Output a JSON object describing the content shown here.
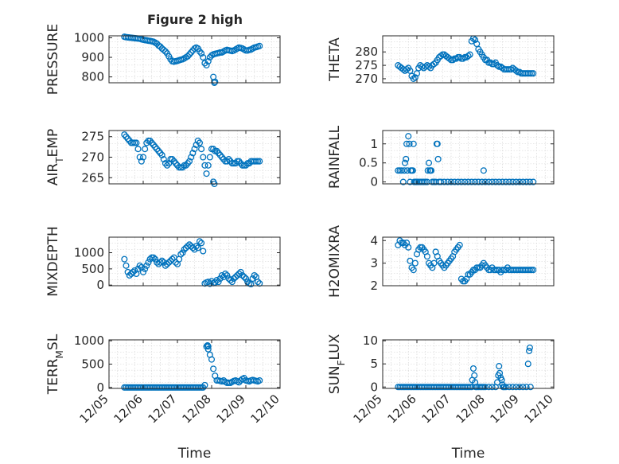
{
  "figure": {
    "title": "Figure 2 high"
  },
  "chart_data": [
    {
      "type": "scatter",
      "ylabel": "PRESSURE",
      "xlabel": "",
      "xlim": [
        0,
        5
      ],
      "ylim": [
        770,
        1010
      ],
      "yticks": [
        800,
        900,
        1000
      ],
      "xticks": [],
      "grid": true,
      "x": [
        0.45,
        0.5,
        0.55,
        0.6,
        0.65,
        0.7,
        0.75,
        0.8,
        0.85,
        0.9,
        0.95,
        1.0,
        1.05,
        1.1,
        1.15,
        1.2,
        1.25,
        1.3,
        1.35,
        1.4,
        1.45,
        1.5,
        1.55,
        1.6,
        1.65,
        1.7,
        1.75,
        1.8,
        1.85,
        1.9,
        1.95,
        2.0,
        2.05,
        2.1,
        2.15,
        2.2,
        2.25,
        2.3,
        2.35,
        2.4,
        2.45,
        2.5,
        2.55,
        2.6,
        2.65,
        2.7,
        2.75,
        2.8,
        2.85,
        2.9,
        2.95,
        3.0,
        3.05,
        3.1,
        3.15,
        3.2,
        3.25,
        3.3,
        3.35,
        3.4,
        3.45,
        3.5,
        3.55,
        3.6,
        3.65,
        3.7,
        3.75,
        3.8,
        3.85,
        3.9,
        3.95,
        4.0,
        4.05,
        4.1,
        4.15,
        4.2,
        4.25,
        4.3,
        4.35,
        4.4,
        3.05,
        3.08,
        3.1
      ],
      "values": [
        1005,
        1003,
        1002,
        1001,
        1000,
        999,
        998,
        997,
        996,
        995,
        992,
        990,
        988,
        987,
        985,
        984,
        982,
        980,
        975,
        970,
        960,
        955,
        945,
        938,
        930,
        920,
        905,
        890,
        880,
        878,
        880,
        882,
        885,
        888,
        890,
        895,
        900,
        905,
        915,
        925,
        935,
        945,
        950,
        945,
        930,
        920,
        900,
        870,
        860,
        880,
        900,
        910,
        915,
        918,
        920,
        922,
        925,
        925,
        930,
        935,
        938,
        936,
        934,
        932,
        935,
        940,
        945,
        950,
        948,
        945,
        940,
        935,
        935,
        938,
        940,
        945,
        950,
        952,
        955,
        958,
        800,
        770,
        775
      ]
    },
    {
      "type": "scatter",
      "ylabel": "THETA",
      "xlabel": "",
      "xlim": [
        0,
        5
      ],
      "ylim": [
        268.5,
        286
      ],
      "yticks": [
        270,
        275,
        280
      ],
      "xticks": [],
      "grid": true,
      "x": [
        0.45,
        0.5,
        0.55,
        0.6,
        0.65,
        0.7,
        0.75,
        0.8,
        0.85,
        0.9,
        0.95,
        1.0,
        1.05,
        1.1,
        1.15,
        1.2,
        1.25,
        1.3,
        1.35,
        1.4,
        1.45,
        1.5,
        1.55,
        1.6,
        1.65,
        1.7,
        1.75,
        1.8,
        1.85,
        1.9,
        1.95,
        2.0,
        2.05,
        2.1,
        2.15,
        2.2,
        2.25,
        2.3,
        2.35,
        2.4,
        2.45,
        2.5,
        2.55,
        2.6,
        2.65,
        2.7,
        2.75,
        2.8,
        2.85,
        2.9,
        2.95,
        3.0,
        3.05,
        3.1,
        3.15,
        3.2,
        3.25,
        3.3,
        3.35,
        3.4,
        3.45,
        3.5,
        3.55,
        3.6,
        3.65,
        3.7,
        3.75,
        3.8,
        3.85,
        3.9,
        3.95,
        4.0,
        4.05,
        4.1,
        4.15,
        4.2,
        4.25,
        4.3,
        4.35,
        4.4
      ],
      "values": [
        275,
        274.5,
        274,
        273.5,
        273,
        273.5,
        274,
        273,
        271,
        270,
        270.5,
        272,
        274,
        275,
        274.5,
        274,
        274.5,
        275,
        274.5,
        274,
        275,
        275.5,
        276,
        277,
        278,
        278.5,
        279,
        279,
        278.5,
        278,
        277.5,
        277,
        277,
        277.5,
        277.5,
        278,
        278,
        277.5,
        277.5,
        278,
        278,
        278.5,
        279,
        284,
        285,
        284.5,
        283,
        281,
        280,
        279,
        278,
        277,
        277,
        276,
        276,
        275.5,
        275.5,
        276,
        275,
        274.5,
        274.5,
        274,
        273.5,
        273.5,
        273.5,
        273.5,
        273.5,
        274,
        273.5,
        273,
        272.5,
        272.5,
        272,
        272,
        272,
        272,
        272,
        272,
        272,
        272
      ]
    },
    {
      "type": "scatter",
      "ylabel": "AIR_TEMP",
      "xlabel": "",
      "xlim": [
        0,
        5
      ],
      "ylim": [
        263.5,
        276.5
      ],
      "yticks": [
        265,
        270,
        275
      ],
      "xticks": [],
      "grid": true,
      "x": [
        0.45,
        0.5,
        0.55,
        0.6,
        0.65,
        0.7,
        0.75,
        0.8,
        0.85,
        0.9,
        0.95,
        1.0,
        1.05,
        1.1,
        1.15,
        1.2,
        1.25,
        1.3,
        1.35,
        1.4,
        1.45,
        1.5,
        1.55,
        1.6,
        1.65,
        1.7,
        1.75,
        1.8,
        1.85,
        1.9,
        1.95,
        2.0,
        2.05,
        2.1,
        2.15,
        2.2,
        2.25,
        2.3,
        2.35,
        2.4,
        2.45,
        2.5,
        2.55,
        2.6,
        2.65,
        2.7,
        2.75,
        2.8,
        2.85,
        2.9,
        2.95,
        3.0,
        3.05,
        3.1,
        3.15,
        3.2,
        3.25,
        3.3,
        3.35,
        3.4,
        3.45,
        3.5,
        3.55,
        3.6,
        3.65,
        3.7,
        3.75,
        3.8,
        3.85,
        3.9,
        3.95,
        4.0,
        4.05,
        4.1,
        4.15,
        4.2,
        4.25,
        4.3,
        4.35,
        4.4,
        3.05,
        3.08
      ],
      "values": [
        275.5,
        275,
        274.5,
        274,
        273.5,
        273.5,
        273.5,
        273.5,
        272,
        270,
        269,
        270,
        272,
        273.5,
        274,
        274,
        273.5,
        273,
        272.5,
        272,
        271.5,
        271,
        270.5,
        269.5,
        268.5,
        268,
        268.5,
        269.5,
        269.5,
        269,
        268.5,
        268,
        267.5,
        267.5,
        267.5,
        268,
        268,
        268.5,
        269,
        270,
        271,
        272,
        273,
        274,
        273.5,
        272,
        270,
        268,
        266,
        268,
        270,
        272,
        272,
        271.5,
        271.5,
        271,
        270.5,
        270,
        269.5,
        269,
        269,
        269.5,
        269,
        268.5,
        268.5,
        268.5,
        269,
        269,
        268.5,
        268,
        268,
        268,
        268.5,
        268.5,
        269,
        269,
        269,
        269,
        269,
        269,
        264,
        263.5
      ]
    },
    {
      "type": "scatter",
      "ylabel": "RAINFALL",
      "xlabel": "",
      "xlim": [
        0,
        5
      ],
      "ylim": [
        -0.05,
        1.35
      ],
      "yticks": [
        0,
        0.5,
        1
      ],
      "xticks": [],
      "grid": true,
      "x": [
        0.45,
        0.5,
        0.55,
        0.6,
        0.63,
        0.65,
        0.68,
        0.7,
        0.72,
        0.75,
        0.78,
        0.8,
        0.82,
        0.85,
        0.88,
        0.9,
        0.92,
        0.95,
        0.98,
        1.0,
        1.05,
        1.1,
        1.15,
        1.2,
        1.25,
        1.3,
        1.32,
        1.35,
        1.38,
        1.4,
        1.42,
        1.45,
        1.5,
        1.55,
        1.58,
        1.6,
        1.62,
        1.65,
        1.7,
        1.8,
        1.9,
        2.0,
        2.1,
        2.2,
        2.3,
        2.4,
        2.5,
        2.6,
        2.7,
        2.8,
        2.9,
        2.95,
        3.0,
        3.1,
        3.2,
        3.3,
        3.4,
        3.5,
        3.6,
        3.7,
        3.8,
        3.9,
        4.0,
        4.1,
        4.2,
        4.3,
        4.4
      ],
      "values": [
        0.3,
        0.3,
        0.3,
        0,
        0.3,
        0.5,
        0.6,
        1.0,
        0.3,
        1.2,
        1.0,
        0,
        0.3,
        0.3,
        0.3,
        1.0,
        0,
        0,
        0,
        0,
        0,
        0,
        0,
        0,
        0,
        0,
        0.3,
        0.5,
        0.3,
        0.3,
        0.3,
        0,
        0,
        0,
        1.0,
        1.0,
        0.6,
        0,
        0,
        0,
        0,
        0,
        0,
        0,
        0,
        0,
        0,
        0,
        0,
        0,
        0,
        0.3,
        0,
        0,
        0,
        0,
        0,
        0,
        0,
        0,
        0,
        0,
        0,
        0,
        0,
        0,
        0
      ]
    },
    {
      "type": "scatter",
      "ylabel": "MIXDEPTH",
      "xlabel": "",
      "xlim": [
        0,
        5
      ],
      "ylim": [
        -20,
        1480
      ],
      "yticks": [
        0,
        500,
        1000
      ],
      "xticks": [],
      "grid": true,
      "x": [
        0.45,
        0.5,
        0.55,
        0.6,
        0.65,
        0.7,
        0.75,
        0.8,
        0.85,
        0.9,
        0.95,
        1.0,
        1.05,
        1.1,
        1.15,
        1.2,
        1.25,
        1.3,
        1.35,
        1.4,
        1.45,
        1.5,
        1.55,
        1.6,
        1.65,
        1.7,
        1.75,
        1.8,
        1.85,
        1.9,
        1.95,
        2.0,
        2.05,
        2.1,
        2.15,
        2.2,
        2.25,
        2.3,
        2.35,
        2.4,
        2.45,
        2.5,
        2.55,
        2.6,
        2.65,
        2.7,
        2.75,
        2.8,
        2.85,
        2.9,
        2.95,
        3.0,
        3.05,
        3.1,
        3.15,
        3.2,
        3.25,
        3.3,
        3.35,
        3.4,
        3.45,
        3.5,
        3.55,
        3.6,
        3.65,
        3.7,
        3.75,
        3.8,
        3.85,
        3.9,
        3.95,
        4.0,
        4.05,
        4.1,
        4.15,
        4.2,
        4.25,
        4.3,
        4.35,
        4.4
      ],
      "values": [
        800,
        600,
        400,
        300,
        350,
        400,
        450,
        350,
        500,
        600,
        550,
        400,
        500,
        600,
        700,
        800,
        850,
        850,
        800,
        700,
        650,
        700,
        750,
        700,
        600,
        650,
        700,
        750,
        800,
        850,
        700,
        650,
        800,
        950,
        1000,
        1100,
        1150,
        1200,
        1250,
        1200,
        1150,
        1100,
        1200,
        1150,
        1350,
        1300,
        1050,
        50,
        80,
        100,
        40,
        120,
        60,
        80,
        150,
        100,
        200,
        300,
        250,
        350,
        300,
        200,
        150,
        100,
        200,
        250,
        300,
        350,
        400,
        300,
        250,
        200,
        100,
        50,
        30,
        200,
        300,
        250,
        100,
        50
      ]
    },
    {
      "type": "scatter",
      "ylabel": "H2OMIXRA",
      "xlabel": "",
      "xlim": [
        0,
        5
      ],
      "ylim": [
        2,
        4.15
      ],
      "yticks": [
        2,
        3,
        4
      ],
      "xticks": [],
      "grid": true,
      "x": [
        0.45,
        0.5,
        0.55,
        0.6,
        0.65,
        0.7,
        0.75,
        0.8,
        0.85,
        0.9,
        0.95,
        1.0,
        1.05,
        1.1,
        1.15,
        1.2,
        1.25,
        1.3,
        1.35,
        1.4,
        1.45,
        1.5,
        1.55,
        1.6,
        1.65,
        1.7,
        1.75,
        1.8,
        1.85,
        1.9,
        1.95,
        2.0,
        2.05,
        2.1,
        2.15,
        2.2,
        2.25,
        2.3,
        2.35,
        2.4,
        2.45,
        2.5,
        2.55,
        2.6,
        2.65,
        2.7,
        2.75,
        2.8,
        2.85,
        2.9,
        2.95,
        3.0,
        3.05,
        3.1,
        3.15,
        3.2,
        3.25,
        3.3,
        3.35,
        3.4,
        3.45,
        3.5,
        3.55,
        3.6,
        3.65,
        3.7,
        3.75,
        3.8,
        3.85,
        3.9,
        3.95,
        4.0,
        4.05,
        4.1,
        4.15,
        4.2,
        4.25,
        4.3,
        4.35,
        4.4
      ],
      "values": [
        3.8,
        4.0,
        3.9,
        3.9,
        3.8,
        3.9,
        3.7,
        3.1,
        2.8,
        2.7,
        3.0,
        3.4,
        3.6,
        3.7,
        3.7,
        3.6,
        3.5,
        3.3,
        3.0,
        2.9,
        2.8,
        3.0,
        3.5,
        3.3,
        3.1,
        3.0,
        2.9,
        2.8,
        2.9,
        3.0,
        3.1,
        3.2,
        3.3,
        3.5,
        3.6,
        3.7,
        3.8,
        2.3,
        2.2,
        2.2,
        2.3,
        2.5,
        2.5,
        2.6,
        2.7,
        2.7,
        2.8,
        2.8,
        2.8,
        2.9,
        3.0,
        2.9,
        2.8,
        2.7,
        2.7,
        2.8,
        2.7,
        2.7,
        2.7,
        2.7,
        2.6,
        2.7,
        2.7,
        2.7,
        2.8,
        2.7,
        2.7,
        2.7,
        2.7,
        2.7,
        2.7,
        2.7,
        2.7,
        2.7,
        2.7,
        2.7,
        2.7,
        2.7,
        2.7,
        2.7
      ]
    },
    {
      "type": "scatter",
      "ylabel": "TERR_MSL",
      "xlabel": "Time",
      "xlim": [
        0,
        5
      ],
      "ylim": [
        -20,
        1020
      ],
      "yticks": [
        0,
        500,
        1000
      ],
      "xticks": [
        "12/05",
        "12/06",
        "12/07",
        "12/08",
        "12/09",
        "12/10"
      ],
      "grid": true,
      "x": [
        0.45,
        0.5,
        0.55,
        0.6,
        0.65,
        0.7,
        0.75,
        0.8,
        0.85,
        0.9,
        0.95,
        1.0,
        1.05,
        1.1,
        1.15,
        1.2,
        1.25,
        1.3,
        1.35,
        1.4,
        1.45,
        1.5,
        1.55,
        1.6,
        1.65,
        1.7,
        1.75,
        1.8,
        1.85,
        1.9,
        1.95,
        2.0,
        2.05,
        2.1,
        2.15,
        2.2,
        2.25,
        2.3,
        2.35,
        2.4,
        2.45,
        2.5,
        2.55,
        2.6,
        2.65,
        2.7,
        2.75,
        2.8,
        2.85,
        2.9,
        2.95,
        3.0,
        3.05,
        3.1,
        3.15,
        3.2,
        3.25,
        3.3,
        3.35,
        3.4,
        3.45,
        3.5,
        3.55,
        3.6,
        3.65,
        3.7,
        3.75,
        3.8,
        3.85,
        3.9,
        3.95,
        4.0,
        4.05,
        4.1,
        4.15,
        4.2,
        4.25,
        4.3,
        4.35,
        4.4,
        2.88,
        2.9
      ],
      "values": [
        0,
        0,
        0,
        0,
        0,
        0,
        0,
        0,
        0,
        0,
        0,
        0,
        0,
        0,
        0,
        0,
        0,
        0,
        0,
        0,
        0,
        0,
        0,
        0,
        0,
        0,
        0,
        0,
        0,
        0,
        0,
        0,
        0,
        0,
        0,
        0,
        0,
        0,
        0,
        0,
        0,
        0,
        0,
        0,
        0,
        0,
        0,
        50,
        880,
        820,
        700,
        600,
        400,
        250,
        150,
        150,
        140,
        130,
        150,
        120,
        100,
        100,
        100,
        120,
        140,
        150,
        130,
        110,
        150,
        180,
        200,
        150,
        140,
        130,
        150,
        160,
        150,
        140,
        130,
        150,
        900,
        880
      ]
    },
    {
      "type": "scatter",
      "ylabel": "SUN_FLUX",
      "xlabel": "Time",
      "xlim": [
        0,
        5
      ],
      "ylim": [
        -0.3,
        10.2
      ],
      "yticks": [
        0,
        5,
        10
      ],
      "xticks": [
        "12/05",
        "12/06",
        "12/07",
        "12/08",
        "12/09",
        "12/10"
      ],
      "grid": true,
      "x": [
        0.45,
        0.5,
        0.55,
        0.6,
        0.65,
        0.7,
        0.75,
        0.8,
        0.85,
        0.9,
        0.95,
        1.0,
        1.05,
        1.1,
        1.15,
        1.2,
        1.25,
        1.3,
        1.35,
        1.4,
        1.45,
        1.5,
        1.55,
        1.6,
        1.65,
        1.7,
        1.75,
        1.8,
        1.85,
        1.9,
        1.95,
        2.0,
        2.05,
        2.1,
        2.15,
        2.2,
        2.25,
        2.3,
        2.35,
        2.4,
        2.45,
        2.5,
        2.55,
        2.6,
        2.62,
        2.65,
        2.68,
        2.7,
        2.72,
        2.75,
        2.8,
        2.85,
        2.9,
        2.95,
        3.0,
        3.1,
        3.2,
        3.3,
        3.35,
        3.38,
        3.4,
        3.42,
        3.45,
        3.48,
        3.5,
        3.52,
        3.55,
        3.6,
        3.7,
        3.8,
        3.9,
        4.0,
        4.1,
        4.2,
        4.25,
        4.28,
        4.3,
        4.32
      ],
      "values": [
        0,
        0,
        0,
        0,
        0,
        0,
        0,
        0,
        0,
        0,
        0,
        0,
        0,
        0,
        0,
        0,
        0,
        0,
        0,
        0,
        0,
        0,
        0,
        0,
        0,
        0,
        0,
        0,
        0,
        0,
        0,
        0,
        0,
        0,
        0,
        0,
        0,
        0,
        0,
        0,
        0,
        0,
        0,
        0,
        1.5,
        4.0,
        2.5,
        1.0,
        0,
        0,
        0,
        0,
        0,
        0,
        0,
        0,
        0,
        0,
        1.0,
        2.5,
        4.5,
        3.0,
        2.0,
        1.5,
        0.5,
        0,
        0,
        0,
        0,
        0,
        0,
        0,
        0,
        0,
        5.0,
        7.8,
        8.5,
        0
      ]
    }
  ]
}
